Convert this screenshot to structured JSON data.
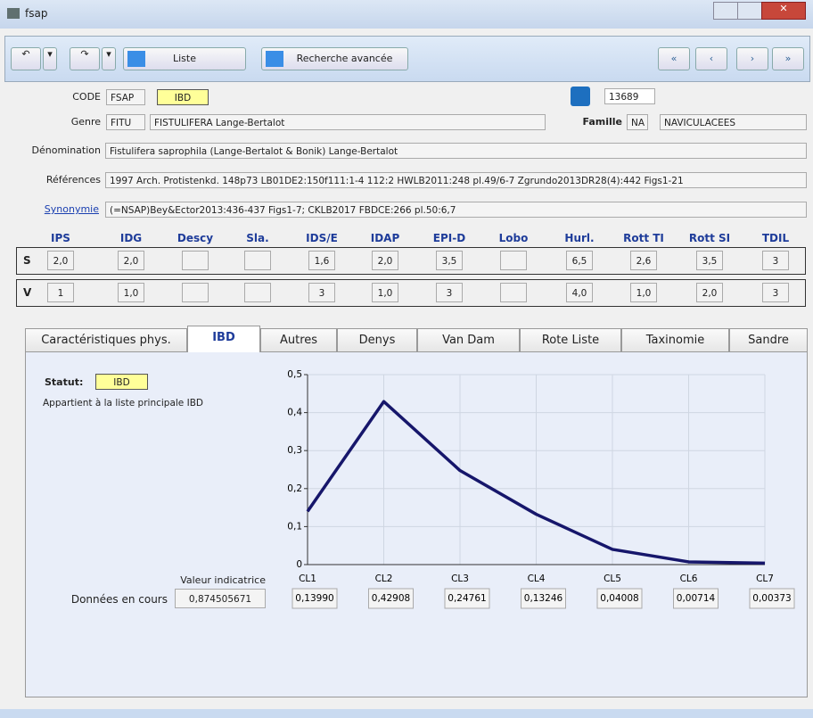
{
  "window": {
    "title": "fsap"
  },
  "toolbar": {
    "list_button": "Liste",
    "search_button": "Recherche avancée"
  },
  "record": {
    "code_label": "CODE",
    "code": "FSAP",
    "code_status": "IBD",
    "number": "13689",
    "genre_label": "Genre",
    "genre_code": "FITU",
    "genre_name": "FISTULIFERA Lange-Bertalot",
    "famille_label": "Famille",
    "famille_code": "NA",
    "famille_name": "NAVICULACEES",
    "denomination_label": "Dénomination",
    "denomination": "Fistulifera saprophila (Lange-Bertalot & Bonik) Lange-Bertalot",
    "references_label": "Références",
    "references": "1997 Arch. Protistenkd. 148p73 LB01DE2:150f111:1-4 112:2 HWLB2011:248 pl.49/6-7 Zgrundo2013DR28(4):442 Figs1-21",
    "synonymie_label": "Synonymie",
    "synonymie": "(=NSAP)Bey&Ector2013:436-437 Figs1-7; CKLB2017 FBDCE:266 pl.50:6,7"
  },
  "indices": {
    "headers": [
      "IPS",
      "IDG",
      "Descy",
      "Sla.",
      "IDS/E",
      "IDAP",
      "EPI-D",
      "Lobo",
      "Hurl.",
      "Rott TI",
      "Rott SI",
      "TDIL"
    ],
    "rows": [
      {
        "label": "S",
        "cells": [
          "2,0",
          "2,0",
          null,
          null,
          "1,6",
          "2,0",
          "3,5",
          null,
          "6,5",
          "2,6",
          "3,5",
          "3"
        ]
      },
      {
        "label": "V",
        "cells": [
          "1",
          "1,0",
          null,
          null,
          "3",
          "1,0",
          "3",
          null,
          "4,0",
          "1,0",
          "2,0",
          "3"
        ]
      }
    ]
  },
  "tabs": [
    "Caractéristiques phys.",
    "IBD",
    "Autres",
    "Denys",
    "Van Dam",
    "Rote Liste",
    "Taxinomie",
    "Sandre"
  ],
  "ibd_panel": {
    "statut_label": "Statut:",
    "statut": "IBD",
    "note": "Appartient à la liste principale IBD",
    "indicator_label": "Valeur indicatrice",
    "current_label": "Données en cours",
    "indicator_value": "0,874505671"
  },
  "chart_data": {
    "type": "line",
    "categories": [
      "CL1",
      "CL2",
      "CL3",
      "CL4",
      "CL5",
      "CL6",
      "CL7"
    ],
    "values": [
      0.1399,
      0.42908,
      0.24761,
      0.13246,
      0.04008,
      0.00714,
      0.00373
    ],
    "value_labels": [
      "0,13990",
      "0,42908",
      "0,24761",
      "0,13246",
      "0,04008",
      "0,00714",
      "0,00373"
    ],
    "color": "#16166b",
    "ylim": [
      0,
      0.5
    ],
    "yticks": [
      0,
      {
        "value": 0.1,
        "label": "0,1"
      },
      {
        "value": 0.2,
        "label": "0,2"
      },
      {
        "value": 0.3,
        "label": "0,3"
      },
      {
        "value": 0.4,
        "label": "0,4"
      },
      {
        "value": 0.5,
        "label": "0,5"
      }
    ],
    "grid": true
  }
}
